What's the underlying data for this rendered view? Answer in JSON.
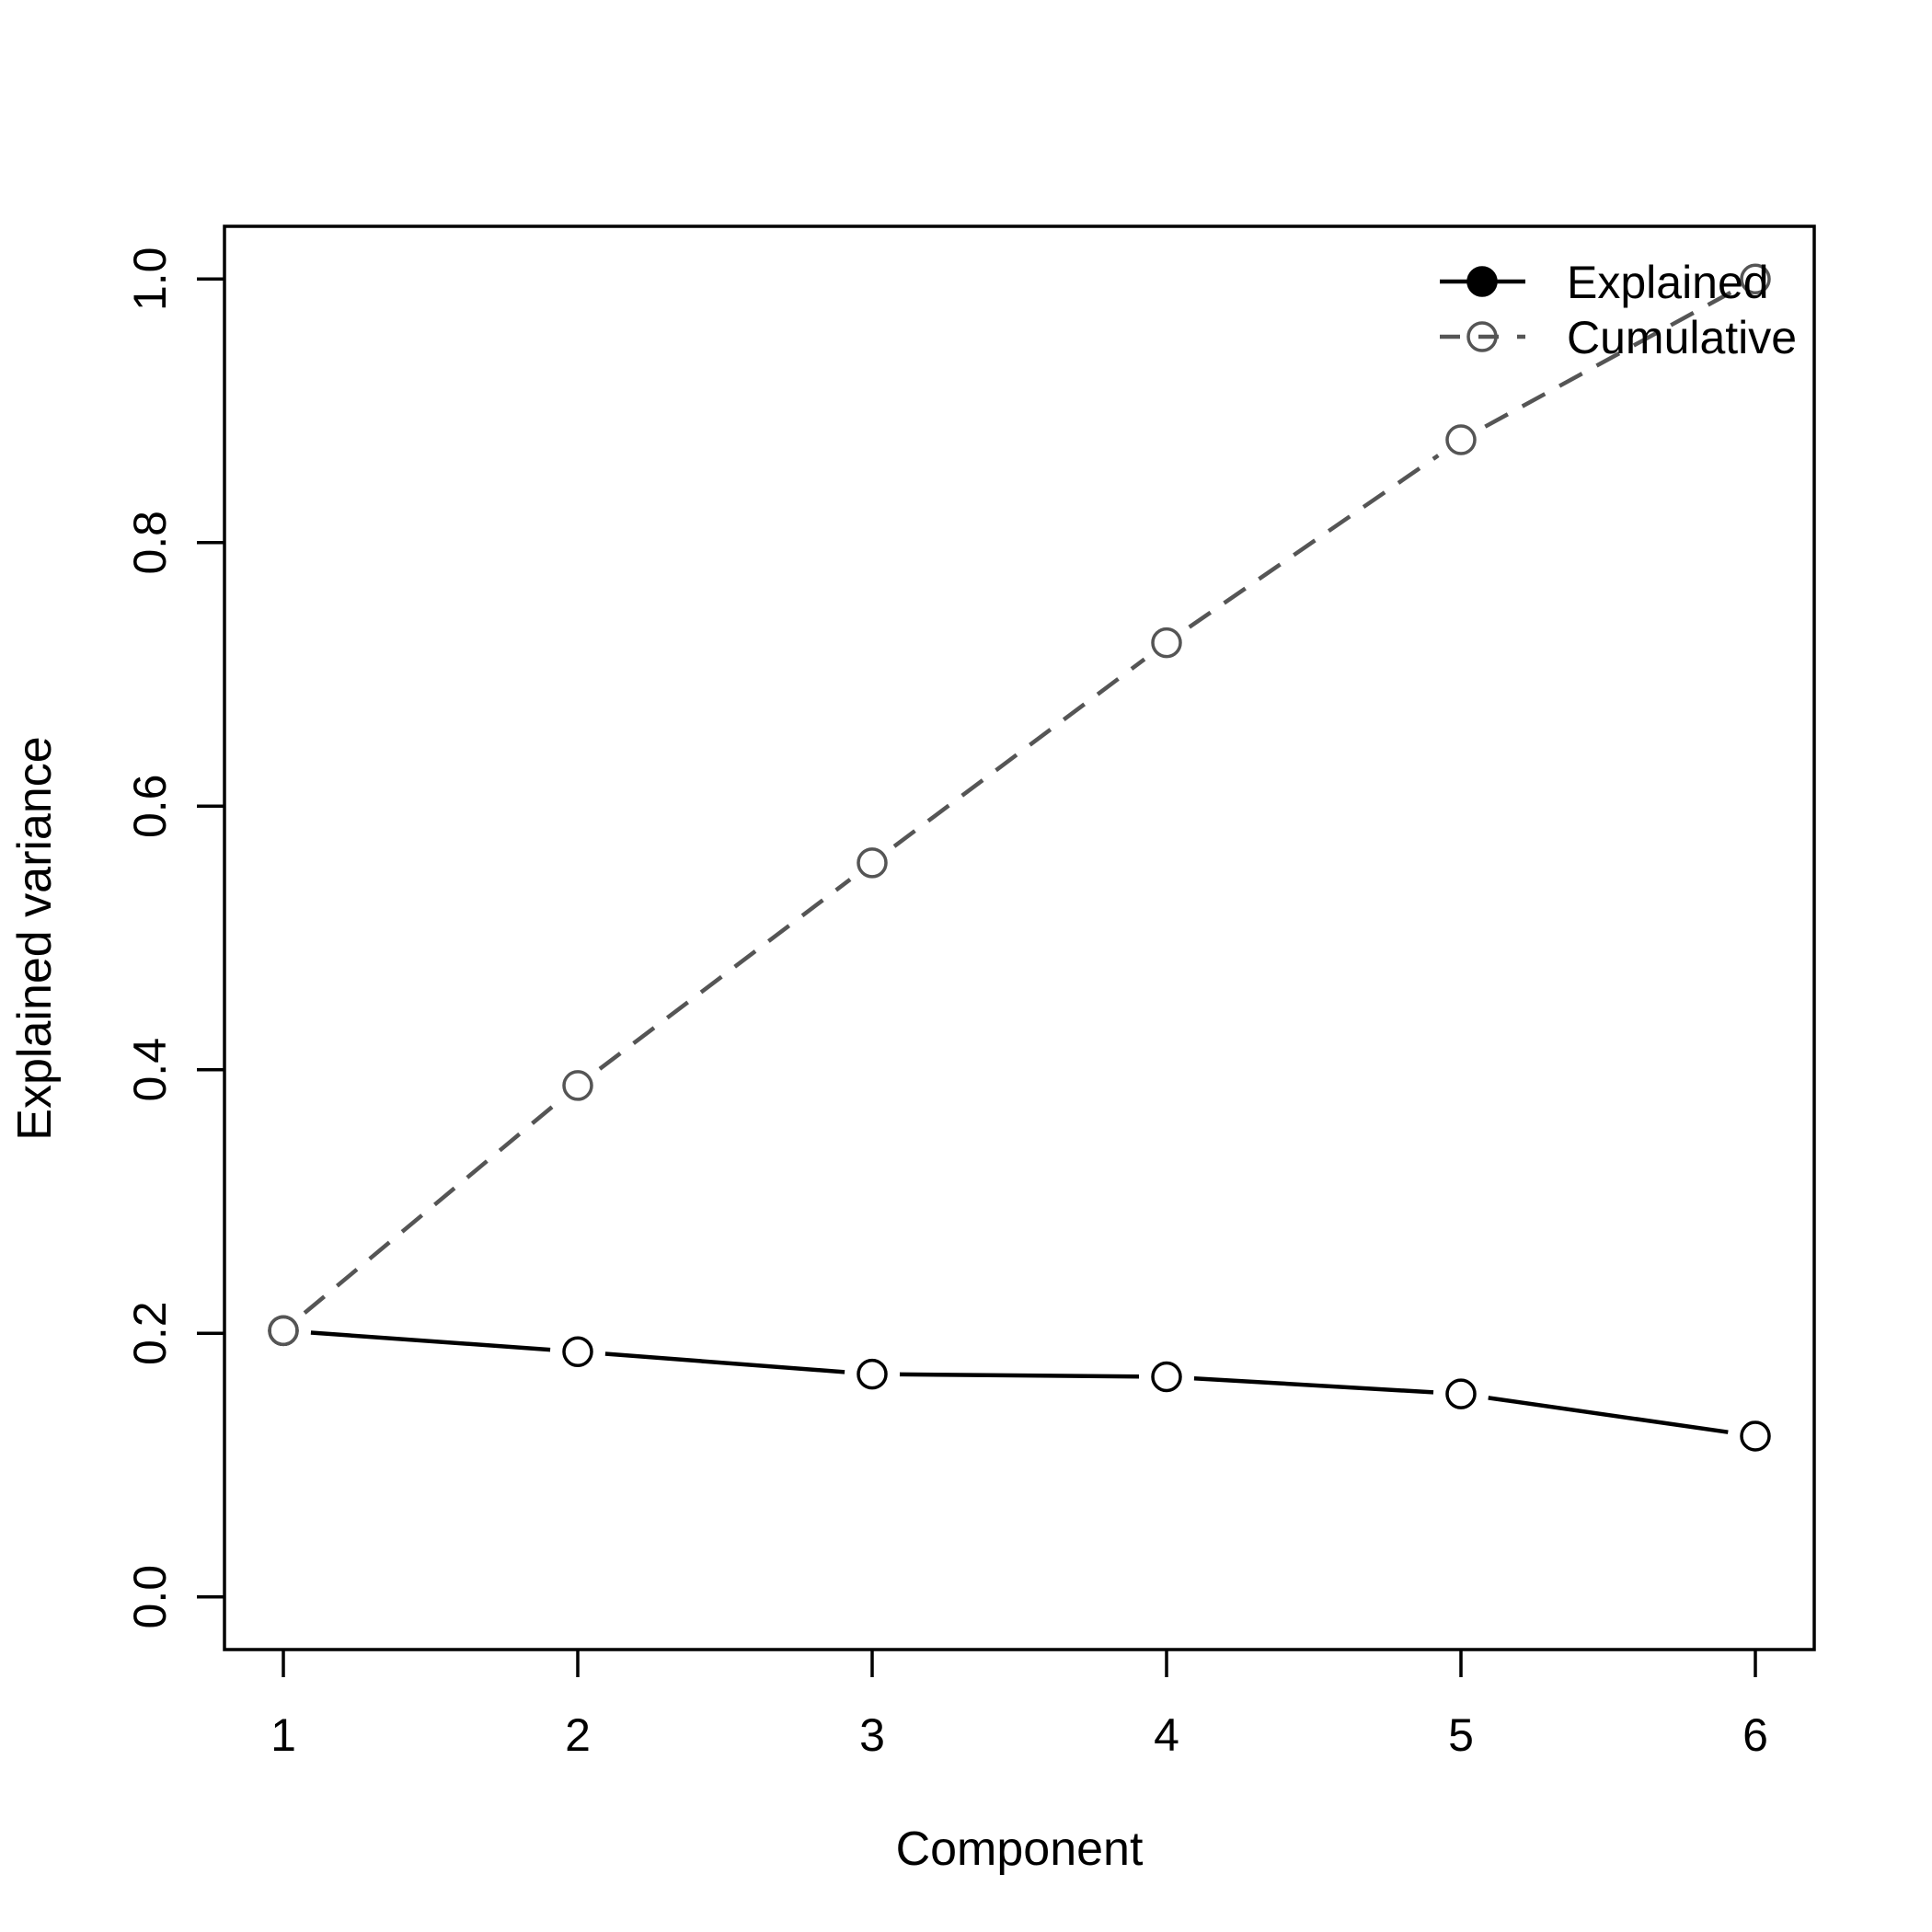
{
  "chart_data": {
    "type": "line",
    "title": "",
    "xlabel": "Component",
    "ylabel": "Explained variance",
    "x": [
      1,
      2,
      3,
      4,
      5,
      6
    ],
    "series": [
      {
        "name": "Explained",
        "values": [
          0.202,
          0.186,
          0.169,
          0.167,
          0.154,
          0.122
        ],
        "line": "solid",
        "marker": "open-circle",
        "color": "#000000"
      },
      {
        "name": "Cumulative",
        "values": [
          0.202,
          0.388,
          0.557,
          0.724,
          0.878,
          1.0
        ],
        "line": "dashed",
        "marker": "open-circle",
        "color": "#555555"
      }
    ],
    "xlim": [
      0.8,
      6.2
    ],
    "ylim": [
      -0.04,
      1.04
    ],
    "xticks": [
      "1",
      "2",
      "3",
      "4",
      "5",
      "6"
    ],
    "yticks": [
      "0.0",
      "0.2",
      "0.4",
      "0.6",
      "0.8",
      "1.0"
    ],
    "grid": false,
    "legend": {
      "position": "top-right",
      "entries": [
        {
          "label": "Explained",
          "line": "solid",
          "marker": "filled-circle",
          "color": "#000000"
        },
        {
          "label": "Cumulative",
          "line": "dashed",
          "marker": "open-circle",
          "color": "#555555"
        }
      ]
    }
  }
}
